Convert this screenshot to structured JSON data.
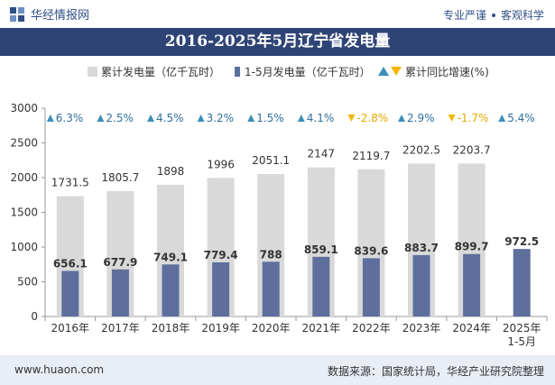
{
  "header": {
    "brand": "华经情报网",
    "tagline_left": "专业严谨",
    "tagline_right": "客观科学"
  },
  "footer": {
    "url": "www.huaon.com",
    "source": "数据来源：国家统计局，华经产业研究院整理"
  },
  "colors": {
    "title_bg": "#2f4476",
    "bar_cumulative": "#d9d9d9",
    "bar_monthly": "#5e6f9e",
    "up_arrow": "#3b8fb8",
    "down_arrow": "#f2b705",
    "label_up": "#2f6f9e",
    "label_down": "#e6a800"
  },
  "chart_data": {
    "type": "bar",
    "title": "2016-2025年5月辽宁省发电量",
    "categories": [
      "2016年",
      "2017年",
      "2018年",
      "2019年",
      "2020年",
      "2021年",
      "2022年",
      "2023年",
      "2024年",
      "2025年\n1-5月"
    ],
    "series": [
      {
        "name": "累计发电量（亿千瓦时）",
        "values": [
          1731.5,
          1805.7,
          1898,
          1996,
          2051.1,
          2147,
          2119.7,
          2202.5,
          2203.7,
          null
        ]
      },
      {
        "name": "1-5月发电量（亿千瓦时）",
        "values": [
          656.1,
          677.9,
          749.1,
          779.4,
          788,
          859.1,
          839.6,
          883.7,
          899.7,
          972.5
        ]
      }
    ],
    "growth": {
      "name": "累计同比增速(%)",
      "values": [
        "6.3%",
        "2.5%",
        "4.5%",
        "3.2%",
        "1.5%",
        "4.1%",
        "-2.8%",
        "2.9%",
        "-1.7%",
        "5.4%"
      ],
      "direction": [
        "up",
        "up",
        "up",
        "up",
        "up",
        "up",
        "down",
        "up",
        "down",
        "up"
      ]
    },
    "ylim": [
      0,
      3000
    ],
    "yticks": [
      0,
      500,
      1000,
      1500,
      2000,
      2500,
      3000
    ],
    "legend_position": "top",
    "grid": false
  }
}
